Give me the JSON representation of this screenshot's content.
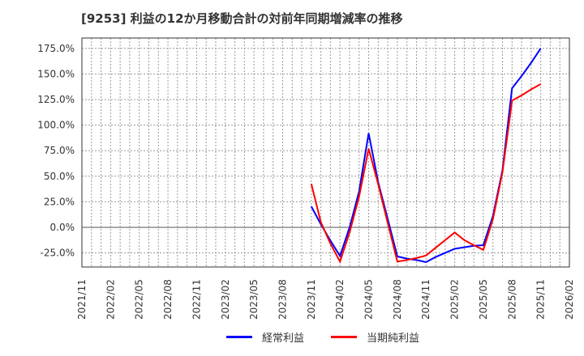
{
  "title": "[9253]  利益の12か月移動合計の対前年同期増減率の推移",
  "chart_data": {
    "type": "line",
    "title": "[9253]  利益の12か月移動合計の対前年同期増減率の推移",
    "xlabel": "",
    "ylabel": "",
    "ylim": [
      -38,
      185
    ],
    "y_ticks": [
      "175.0%",
      "150.0%",
      "125.0%",
      "100.0%",
      "75.0%",
      "50.0%",
      "25.0%",
      "0.0%",
      "-25.0%"
    ],
    "y_tick_values": [
      175,
      150,
      125,
      100,
      75,
      50,
      25,
      0,
      -25
    ],
    "x_ticks": [
      "2021/11",
      "2022/02",
      "2022/05",
      "2022/08",
      "2022/11",
      "2023/02",
      "2023/05",
      "2023/08",
      "2023/11",
      "2024/02",
      "2024/05",
      "2024/08",
      "2024/11",
      "2025/02",
      "2025/05",
      "2025/08",
      "2025/11",
      "2026/02"
    ],
    "x_range": [
      "2021/11",
      "2026/02"
    ],
    "grid": true,
    "legend_position": "bottom",
    "x": [
      "2023/11",
      "2023/12",
      "2024/01",
      "2024/02",
      "2024/03",
      "2024/04",
      "2024/05",
      "2024/06",
      "2024/07",
      "2024/08",
      "2024/09",
      "2024/10",
      "2024/11",
      "2024/12",
      "2025/01",
      "2025/02",
      "2025/03",
      "2025/04",
      "2025/05",
      "2025/06",
      "2025/07",
      "2025/08",
      "2025/09",
      "2025/10",
      "2025/11"
    ],
    "series": [
      {
        "name": "経常利益",
        "color": "#0000ff",
        "values": [
          20.5,
          3.0,
          -13.0,
          -28.0,
          0.0,
          35.0,
          92.0,
          44.0,
          8.0,
          -28.5,
          -30.5,
          -32.0,
          -34.0,
          -29.0,
          -25.0,
          -21.0,
          -19.5,
          -18.0,
          -17.5,
          11.0,
          56.0,
          136.0,
          148.0,
          161.0,
          175.0
        ]
      },
      {
        "name": "当期純利益",
        "color": "#ff0000",
        "values": [
          42.5,
          5.0,
          -16.0,
          -33.5,
          -5.0,
          30.0,
          77.0,
          42.0,
          4.0,
          -33.5,
          -32.0,
          -30.0,
          -27.5,
          -20.0,
          -12.5,
          -5.0,
          -12.5,
          -17.5,
          -22.0,
          8.0,
          54.0,
          124.0,
          129.0,
          135.0,
          140.0
        ]
      }
    ]
  },
  "legend": [
    {
      "label": "経常利益",
      "color": "#0000ff"
    },
    {
      "label": "当期純利益",
      "color": "#ff0000"
    }
  ]
}
